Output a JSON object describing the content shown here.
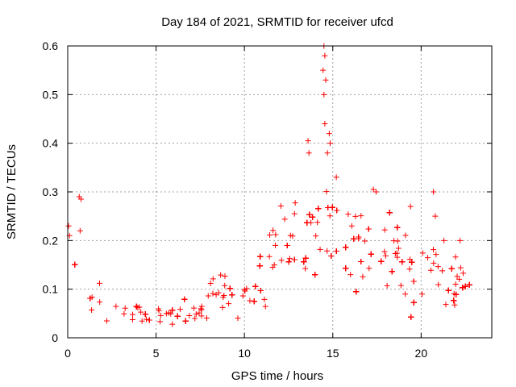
{
  "chart_data": {
    "type": "scatter",
    "title": "Day 184 of 2021, SRMTID for receiver ufcd",
    "xlabel": "GPS time / hours",
    "ylabel": "SRMTID / TECUs",
    "xlim": [
      0,
      24
    ],
    "ylim": [
      0,
      0.6
    ],
    "xticks": [
      0,
      5,
      10,
      15,
      20
    ],
    "xtick_labels": [
      "0",
      "5",
      "10",
      "15",
      "20"
    ],
    "yticks": [
      0,
      0.1,
      0.2,
      0.3,
      0.4,
      0.5,
      0.6
    ],
    "ytick_labels": [
      "0",
      "0.1",
      "0.2",
      "0.3",
      "0.4",
      "0.5",
      "0.6"
    ],
    "grid": true,
    "marker": "+",
    "color": "#ff0000",
    "series": [
      {
        "name": "SRMTID",
        "envelope_hours": [
          0,
          0.5,
          1,
          1.5,
          2,
          3,
          4,
          5,
          6,
          7,
          7.5,
          8,
          8.5,
          9,
          10,
          10.5,
          11,
          11.5,
          12,
          12.5,
          13,
          13.5,
          14,
          14.5,
          15,
          15.5,
          16,
          16.5,
          17,
          17.5,
          18,
          18.5,
          19,
          19.5,
          20,
          20.5,
          21,
          21.5,
          22,
          22.5,
          22.8
        ],
        "typical_srmtid": [
          0.12,
          0.1,
          0.085,
          0.075,
          0.065,
          0.055,
          0.052,
          0.05,
          0.05,
          0.048,
          0.05,
          0.07,
          0.09,
          0.085,
          0.08,
          0.1,
          0.13,
          0.15,
          0.17,
          0.18,
          0.18,
          0.19,
          0.2,
          0.22,
          0.2,
          0.19,
          0.18,
          0.17,
          0.16,
          0.15,
          0.15,
          0.14,
          0.14,
          0.13,
          0.13,
          0.13,
          0.12,
          0.12,
          0.11,
          0.1,
          0.09
        ],
        "peak_points": [
          {
            "x": 0.05,
            "y": 0.23
          },
          {
            "x": 0.1,
            "y": 0.21
          },
          {
            "x": 0.65,
            "y": 0.29
          },
          {
            "x": 0.75,
            "y": 0.285
          },
          {
            "x": 0.7,
            "y": 0.22
          },
          {
            "x": 13.6,
            "y": 0.405
          },
          {
            "x": 13.65,
            "y": 0.38
          },
          {
            "x": 14.5,
            "y": 0.6
          },
          {
            "x": 14.55,
            "y": 0.58
          },
          {
            "x": 14.45,
            "y": 0.55
          },
          {
            "x": 14.6,
            "y": 0.53
          },
          {
            "x": 14.5,
            "y": 0.5
          },
          {
            "x": 14.55,
            "y": 0.44
          },
          {
            "x": 14.8,
            "y": 0.42
          },
          {
            "x": 14.85,
            "y": 0.4
          },
          {
            "x": 14.7,
            "y": 0.38
          },
          {
            "x": 15.2,
            "y": 0.33
          },
          {
            "x": 17.3,
            "y": 0.305
          },
          {
            "x": 17.45,
            "y": 0.3
          },
          {
            "x": 19.4,
            "y": 0.27
          },
          {
            "x": 20.7,
            "y": 0.3
          },
          {
            "x": 20.8,
            "y": 0.25
          },
          {
            "x": 22.2,
            "y": 0.2
          }
        ]
      }
    ]
  }
}
